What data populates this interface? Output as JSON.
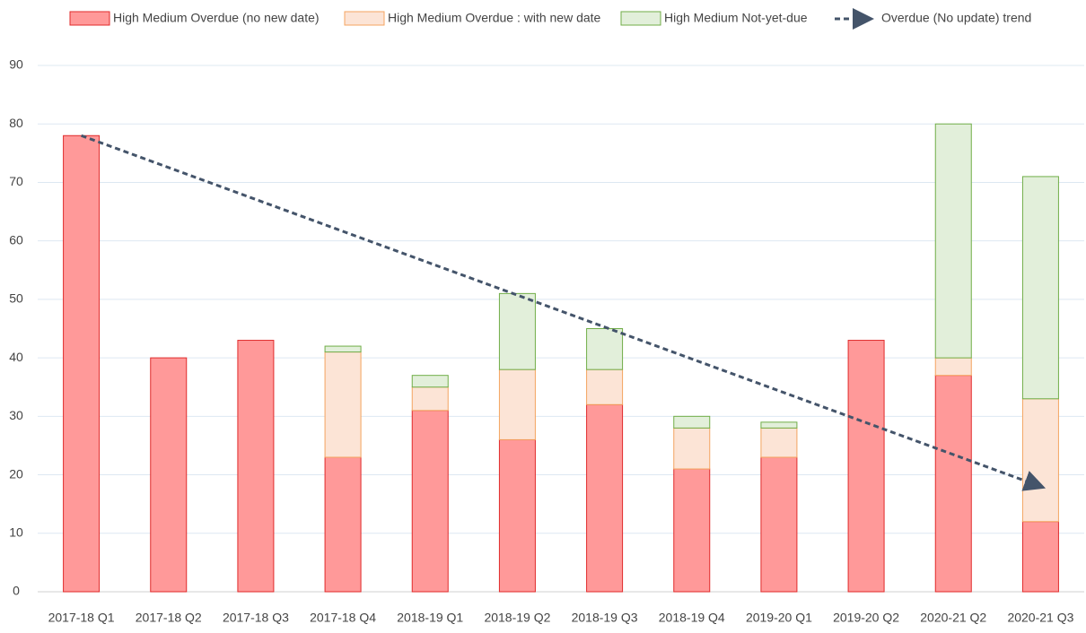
{
  "chart_data": {
    "type": "stacked_bar",
    "categories": [
      "2017-18 Q1",
      "2017-18 Q2",
      "2017-18 Q3",
      "2017-18 Q4",
      "2018-19 Q1",
      "2018-19 Q2",
      "2018-19 Q3",
      "2018-19 Q4",
      "2019-20 Q1",
      "2019-20 Q2",
      "2020-21 Q2",
      "2020-21 Q3"
    ],
    "series": [
      {
        "name": "High Medium Overdue (no new date)",
        "color": "#ff9999",
        "stroke": "#e02b2b",
        "values": [
          78,
          40,
          43,
          23,
          31,
          26,
          32,
          21,
          23,
          43,
          37,
          12
        ]
      },
      {
        "name": "High Medium Overdue : with new date",
        "color": "#fce4d6",
        "stroke": "#f4a460",
        "values": [
          0,
          0,
          0,
          18,
          4,
          12,
          6,
          7,
          5,
          0,
          3,
          21
        ]
      },
      {
        "name": "High Medium Not-yet-due",
        "color": "#e2efda",
        "stroke": "#70ad47",
        "values": [
          0,
          0,
          0,
          1,
          2,
          13,
          7,
          2,
          1,
          0,
          40,
          38
        ]
      }
    ],
    "trend": {
      "name": "Overdue (No update) trend",
      "color": "#44546a",
      "values": [
        78,
        18
      ]
    },
    "ylim": [
      0,
      90
    ],
    "yticks": [
      0,
      10,
      20,
      30,
      40,
      50,
      60,
      70,
      80,
      90
    ],
    "grid": true,
    "legend": "top"
  }
}
